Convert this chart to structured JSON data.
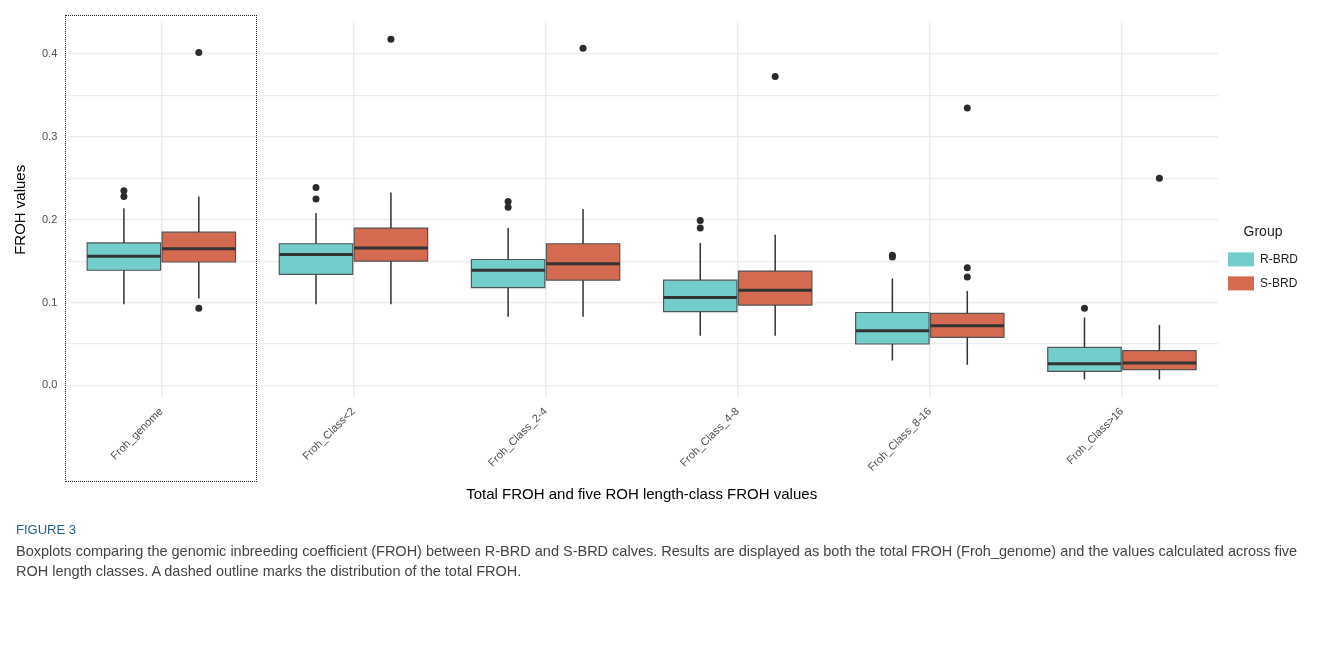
{
  "chart_data": {
    "type": "box",
    "title": "FIGURE 3",
    "xlabel": "Total FROH and five ROH length-class FROH values",
    "ylabel": "FROH values",
    "legend_title": "Group",
    "legend": "right",
    "grid": true,
    "categories": [
      "Froh_genome",
      "Froh_Class<2",
      "Froh_Class_2-4",
      "Froh_Class_4-8",
      "Froh_Class_8-16",
      "Froh_Class>16"
    ],
    "ylim": [
      -0.014,
      0.438
    ],
    "yticks": [
      {
        "value": 0,
        "label": "0.0"
      },
      {
        "value": 0.05,
        "label": null
      },
      0.1,
      {
        "value": 0.15,
        "label": null
      },
      0.2,
      {
        "value": 0.25,
        "label": null
      },
      0.3,
      {
        "value": 0.35,
        "label": null
      },
      0.4
    ],
    "series": [
      {
        "name": "R-BRD",
        "color": "#72cdcb",
        "boxes": [
          {
            "low": 0.098,
            "q1": 0.139,
            "median": 0.156,
            "q3": 0.172,
            "high": 0.214,
            "outliers": [
              0.228,
              0.235
            ]
          },
          {
            "low": 0.098,
            "q1": 0.134,
            "median": 0.158,
            "q3": 0.171,
            "high": 0.208,
            "outliers": [
              0.225,
              0.239
            ]
          },
          {
            "low": 0.083,
            "q1": 0.118,
            "median": 0.139,
            "q3": 0.152,
            "high": 0.19,
            "outliers": [
              0.215,
              0.222
            ]
          },
          {
            "low": 0.06,
            "q1": 0.089,
            "median": 0.106,
            "q3": 0.127,
            "high": 0.172,
            "outliers": [
              0.19,
              0.199
            ]
          },
          {
            "low": 0.03,
            "q1": 0.05,
            "median": 0.066,
            "q3": 0.088,
            "high": 0.129,
            "outliers": [
              0.155,
              0.157
            ]
          },
          {
            "low": 0.007,
            "q1": 0.017,
            "median": 0.026,
            "q3": 0.046,
            "high": 0.082,
            "outliers": [
              0.093
            ]
          }
        ]
      },
      {
        "name": "S-BRD",
        "color": "#d46a50",
        "boxes": [
          {
            "low": 0.105,
            "q1": 0.149,
            "median": 0.165,
            "q3": 0.185,
            "high": 0.228,
            "outliers": [
              0.093,
              0.402
            ]
          },
          {
            "low": 0.098,
            "q1": 0.15,
            "median": 0.166,
            "q3": 0.19,
            "high": 0.233,
            "outliers": [
              0.418
            ]
          },
          {
            "low": 0.083,
            "q1": 0.127,
            "median": 0.147,
            "q3": 0.171,
            "high": 0.213,
            "outliers": [
              0.407
            ]
          },
          {
            "low": 0.06,
            "q1": 0.097,
            "median": 0.115,
            "q3": 0.138,
            "high": 0.182,
            "outliers": [
              0.373
            ]
          },
          {
            "low": 0.025,
            "q1": 0.058,
            "median": 0.072,
            "q3": 0.087,
            "high": 0.114,
            "outliers": [
              0.131,
              0.142,
              0.335
            ]
          },
          {
            "low": 0.007,
            "q1": 0.019,
            "median": 0.027,
            "q3": 0.042,
            "high": 0.073,
            "outliers": [
              0.25
            ]
          }
        ]
      }
    ],
    "annotations": [
      "Boxplots comparing the genomic inbreeding coefficient (FROH) between R-BRD and S-BRD calves. Results are displayed as both the total FROH (Froh_genome) and the values calculated across five ROH length classes. A dashed outline marks the distribution of the total FROH."
    ]
  }
}
